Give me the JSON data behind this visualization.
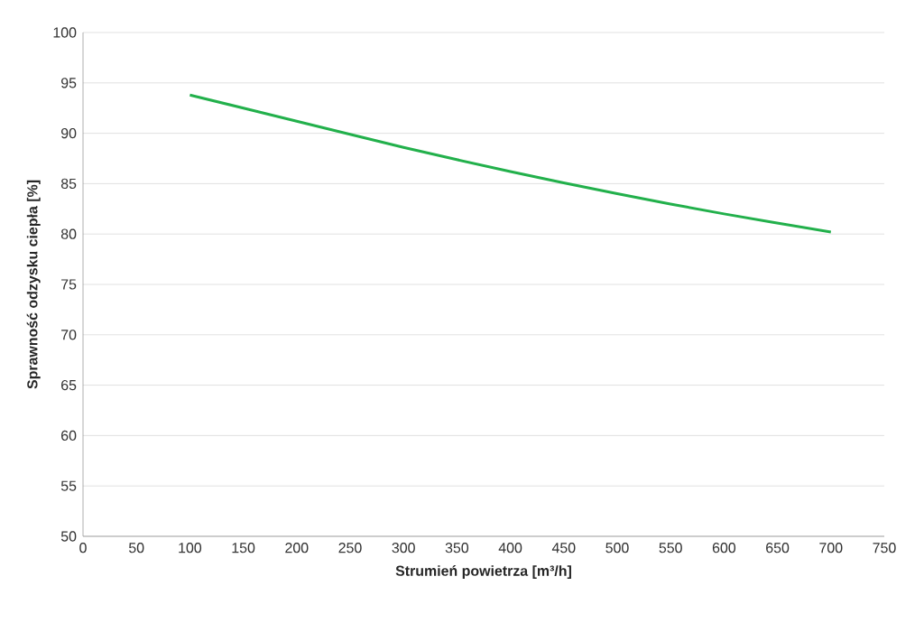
{
  "chart_data": {
    "type": "line",
    "xlabel": "Strumień powietrza [m³/h]",
    "ylabel": "Sprawność odzysku ciepła [%]",
    "x": [
      100,
      200,
      300,
      400,
      500,
      600,
      700
    ],
    "series": [
      {
        "color": "#22b04b",
        "values": [
          93.8,
          91.2,
          88.6,
          86.2,
          84.0,
          82.0,
          80.2
        ]
      }
    ],
    "xlim": [
      0,
      750
    ],
    "ylim": [
      50,
      100
    ],
    "xticks": [
      0,
      50,
      100,
      150,
      200,
      250,
      300,
      350,
      400,
      450,
      500,
      550,
      600,
      650,
      700,
      750
    ],
    "yticks": [
      50,
      55,
      60,
      65,
      70,
      75,
      80,
      85,
      90,
      95,
      100
    ],
    "grid": "y",
    "marker": "none",
    "line_style": "solid"
  }
}
